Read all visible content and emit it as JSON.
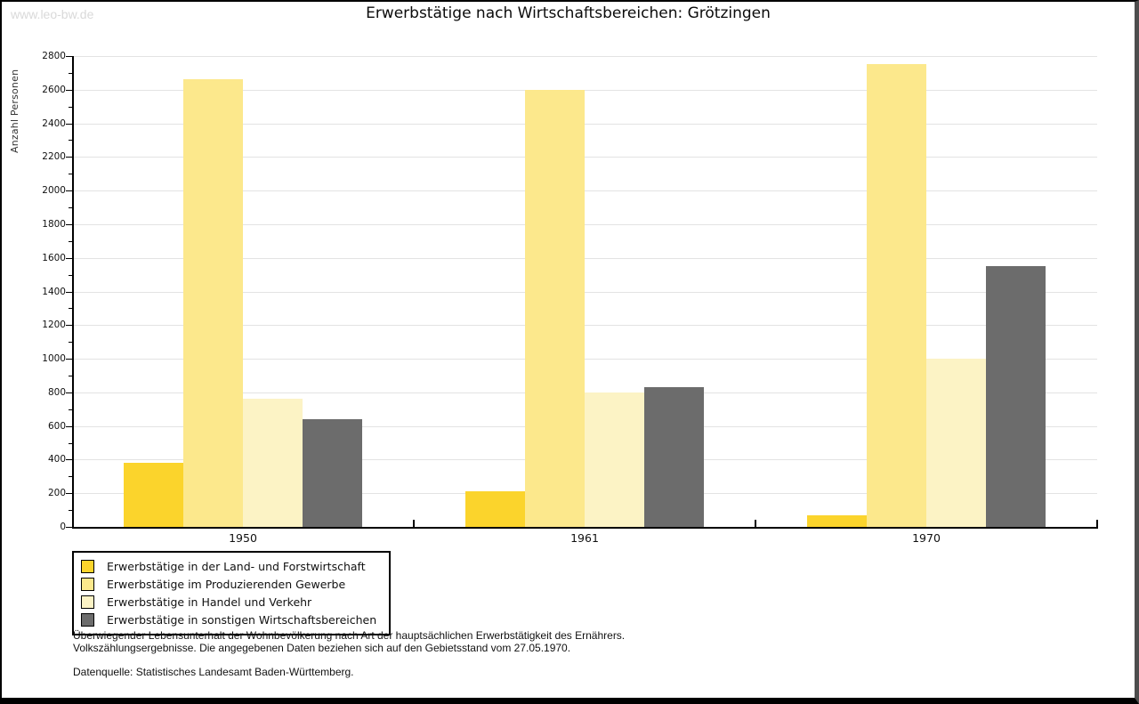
{
  "watermark": "www.leo-bw.de",
  "title": "Erwerbstätige nach Wirtschaftsbereichen: Grötzingen",
  "chart_data": {
    "type": "bar",
    "categories": [
      "1950",
      "1961",
      "1970"
    ],
    "series": [
      {
        "name": "Erwerbstätige in der Land- und Forstwirtschaft",
        "color": "#fbd42c",
        "values": [
          380,
          210,
          70
        ]
      },
      {
        "name": "Erwerbstätige im Produzierenden Gewerbe",
        "color": "#fce88c",
        "values": [
          2660,
          2600,
          2750
        ]
      },
      {
        "name": "Erwerbstätige in Handel und Verkehr",
        "color": "#fcf3c5",
        "values": [
          760,
          800,
          1000
        ]
      },
      {
        "name": "Erwerbstätige in sonstigen Wirtschaftsbereichen",
        "color": "#6c6c6c",
        "values": [
          640,
          830,
          1550
        ]
      }
    ],
    "title": "Erwerbstätige nach Wirtschaftsbereichen: Grötzingen",
    "xlabel": "",
    "ylabel": "Anzahl Personen",
    "ylim": [
      0,
      2800
    ],
    "ytick_step": 200,
    "grid": true,
    "legend_position": "bottom-left"
  },
  "footnotes": {
    "line1": "Überwiegender Lebensunterhalt der Wohnbevölkerung nach Art der hauptsächlichen Erwerbstätigkeit des Ernährers.",
    "line2": "Volkszählungsergebnisse. Die angegebenen Daten beziehen sich auf den Gebietsstand vom 27.05.1970.",
    "source": "Datenquelle: Statistisches Landesamt Baden-Württemberg."
  },
  "colors": {
    "grid": "#e3e3e3",
    "axis": "#000000",
    "watermark": "#d9d9d9",
    "frame": "#000000"
  }
}
